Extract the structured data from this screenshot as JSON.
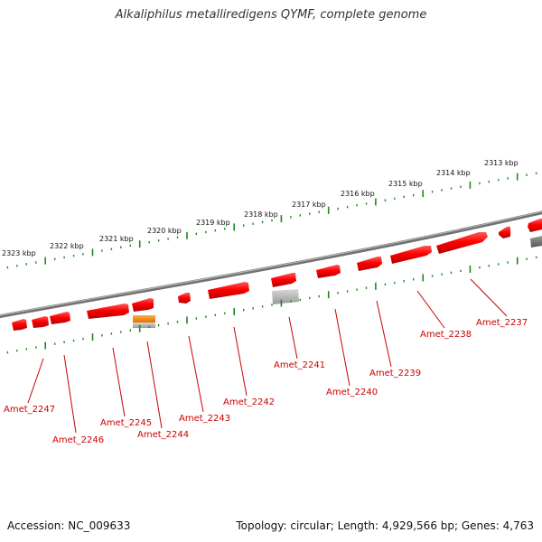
{
  "title": "Alkaliphilus metalliredigens QYMF, complete genome",
  "accession": "Accession: NC_009633",
  "summary": "Topology: circular; Length: 4,929,566 bp; Genes: 4,763",
  "colors": {
    "gene": "#ff0000",
    "gene_label": "#cc0000",
    "rna": "#ff8800",
    "pseudo": "#aaaaaa",
    "other": "#666666",
    "backbone": "#888888",
    "scale": "#1a8a1a"
  },
  "scale_ticks": [
    "2313 kbp",
    "2314 kbp",
    "2315 kbp",
    "2316 kbp",
    "2317 kbp",
    "2318 kbp",
    "2319 kbp",
    "2320 kbp",
    "2321 kbp",
    "2322 kbp",
    "2323 kbp"
  ],
  "gene_labels": [
    "Amet_2237",
    "Amet_2238",
    "Amet_2239",
    "Amet_2240",
    "Amet_2241",
    "Amet_2242",
    "Amet_2243",
    "Amet_2244",
    "Amet_2245",
    "Amet_2246",
    "Amet_2247"
  ]
}
